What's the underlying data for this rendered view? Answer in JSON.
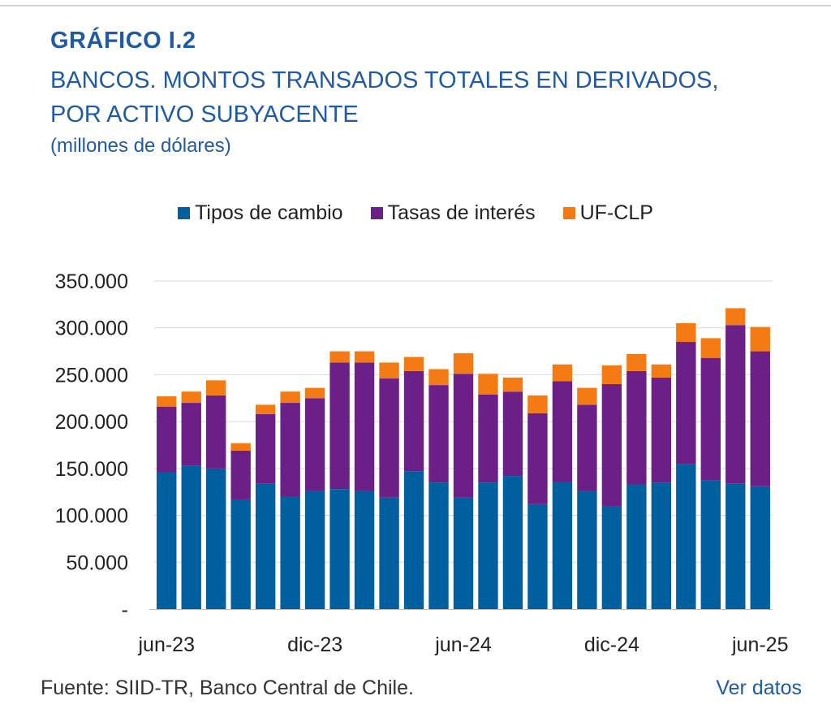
{
  "header": {
    "figure_label": "GRÁFICO I.2",
    "title_line1": "BANCOS. MONTOS TRANSADOS TOTALES EN DERIVADOS,",
    "title_line2": "POR ACTIVO SUBYACENTE",
    "units": "(millones de dólares)"
  },
  "footer": {
    "source": "Fuente: SIID-TR, Banco Central de Chile.",
    "link": "Ver datos"
  },
  "colors": {
    "tipos": "#00609f",
    "tasas": "#6b1f87",
    "ufclp": "#f47a14",
    "grid": "#d9d9d9"
  },
  "chart_data": {
    "type": "bar",
    "stacked": true,
    "title": "BANCOS. MONTOS TRANSADOS TOTALES EN DERIVADOS, POR ACTIVO SUBYACENTE",
    "ylabel": "(millones de dólares)",
    "xlabel": "",
    "ylim": [
      0,
      350000
    ],
    "yticks": [
      0,
      50000,
      100000,
      150000,
      200000,
      250000,
      300000,
      350000
    ],
    "ytick_labels": [
      "-",
      "50.000",
      "100.000",
      "150.000",
      "200.000",
      "250.000",
      "300.000",
      "350.000"
    ],
    "categories": [
      "jun-23",
      "",
      "",
      "",
      "",
      "",
      "dic-23",
      "",
      "",
      "",
      "",
      "",
      "jun-24",
      "",
      "",
      "",
      "",
      "",
      "dic-24",
      "",
      "",
      "",
      "",
      "",
      "jun-25"
    ],
    "xtick_labels": [
      "jun-23",
      "dic-23",
      "jun-24",
      "dic-24",
      "jun-25"
    ],
    "legend": [
      "Tipos de cambio",
      "Tasas de interés",
      "UF-CLP"
    ],
    "legend_position": "top",
    "series": [
      {
        "name": "Tipos de cambio",
        "values": [
          146000,
          153000,
          150000,
          117000,
          134000,
          120000,
          126000,
          128000,
          126000,
          119000,
          147000,
          135000,
          119000,
          135000,
          142000,
          112000,
          136000,
          126000,
          110000,
          133000,
          135000,
          155000,
          137000,
          134000,
          131000
        ]
      },
      {
        "name": "Tasas de interés",
        "values": [
          70000,
          67000,
          78000,
          52000,
          74000,
          100000,
          99000,
          135000,
          137000,
          127000,
          107000,
          104000,
          132000,
          94000,
          90000,
          97000,
          107000,
          92000,
          130000,
          121000,
          112000,
          130000,
          131000,
          169000,
          144000
        ]
      },
      {
        "name": "UF-CLP",
        "values": [
          11000,
          12000,
          16000,
          8000,
          10000,
          12000,
          11000,
          12000,
          12000,
          17000,
          15000,
          17000,
          22000,
          22000,
          15000,
          19000,
          18000,
          18000,
          20000,
          18000,
          14000,
          20000,
          21000,
          18000,
          26000
        ]
      }
    ]
  }
}
